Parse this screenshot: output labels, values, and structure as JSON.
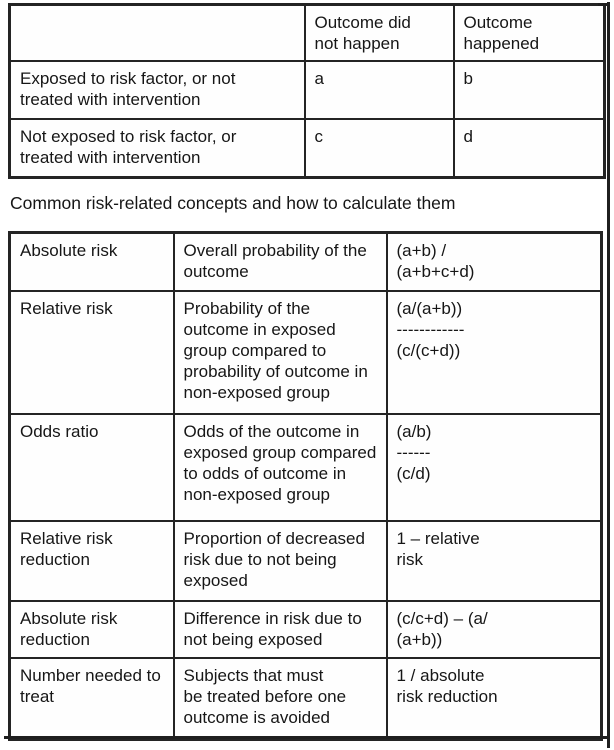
{
  "document": {
    "contingency_table": {
      "header": {
        "corner": "",
        "no_outcome": "Outcome did\nnot happen",
        "outcome": "Outcome\nhappened"
      },
      "rows": [
        {
          "label": "Exposed to risk factor, or not\ntreated with intervention",
          "no_outcome": "a",
          "outcome": "b"
        },
        {
          "label": "Not exposed to risk factor, or\ntreated with intervention",
          "no_outcome": "c",
          "outcome": "d"
        }
      ]
    },
    "caption": "Common risk-related concepts and how to calculate them",
    "concepts_table": {
      "rows": [
        {
          "concept": "Absolute risk",
          "description": "Overall probability of the\noutcome",
          "formula": "(a+b) /\n(a+b+c+d)"
        },
        {
          "concept": "Relative risk",
          "description": "Probability of the\noutcome in exposed\ngroup compared to\nprobability of outcome in\nnon-exposed group",
          "formula": "(a/(a+b))\n------------\n(c/(c+d))"
        },
        {
          "concept": "Odds ratio",
          "description": "Odds of the outcome in\nexposed group compared\nto odds of outcome in\nnon-exposed group",
          "formula": "(a/b)\n------\n(c/d)"
        },
        {
          "concept": "Relative risk\nreduction",
          "description": "Proportion of decreased\nrisk due to not being\nexposed",
          "formula": "1 – relative\nrisk"
        },
        {
          "concept": "Absolute risk\nreduction",
          "description": "Difference in risk due to\nnot being exposed",
          "formula": "(c/c+d) – (a/\n(a+b))"
        },
        {
          "concept": "Number needed to\ntreat",
          "description": "Subjects that must\nbe treated before one\noutcome is avoided",
          "formula": "1 / absolute\nrisk reduction"
        }
      ]
    },
    "colors": {
      "border": "#242424",
      "text": "#161616",
      "background": "#ffffff"
    }
  }
}
